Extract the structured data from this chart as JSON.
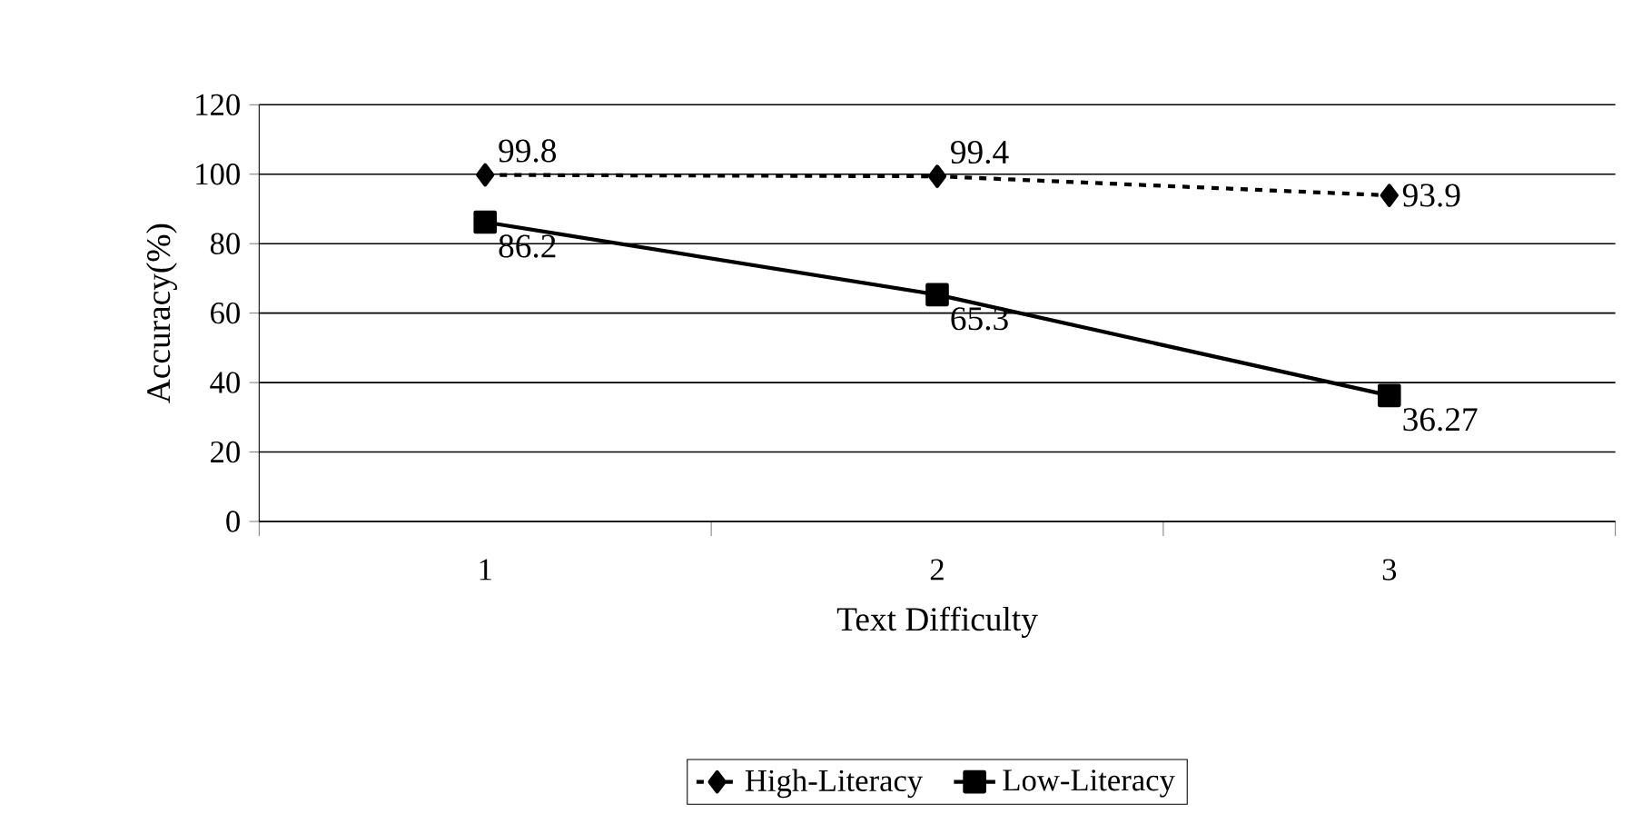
{
  "chart_data": {
    "type": "line",
    "xlabel": "Text Difficulty",
    "ylabel": "Accuracy(%)",
    "categories": [
      "1",
      "2",
      "3"
    ],
    "series": [
      {
        "name": "High-Literacy",
        "color": "#000000",
        "values": [
          99.8,
          99.4,
          93.9
        ],
        "marker": "diamond",
        "line_style": "dashed"
      },
      {
        "name": "Low-Literacy",
        "color": "#000000",
        "values": [
          86.2,
          65.3,
          36.27
        ],
        "marker": "square",
        "line_style": "solid"
      }
    ],
    "ylim": [
      0,
      120
    ],
    "yticks": [
      0,
      20,
      40,
      60,
      80,
      100,
      120
    ],
    "grid": "y",
    "legend": "bottom",
    "data_labels": true
  }
}
